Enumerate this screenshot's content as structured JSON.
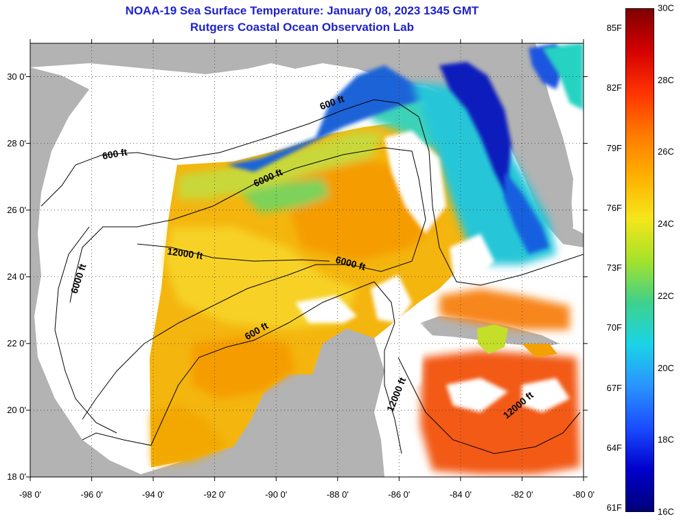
{
  "title": {
    "line1": "NOAA-19 Sea Surface Temperature:  January 08, 2023 1345 GMT",
    "line2": "Rutgers Coastal Ocean Observation Lab"
  },
  "map": {
    "lon_range": [
      -98,
      -80
    ],
    "lat_range": [
      18,
      31
    ],
    "lat_ticks": [
      {
        "value": 18,
        "label": "18 0'"
      },
      {
        "value": 20,
        "label": "20 0'"
      },
      {
        "value": 22,
        "label": "22 0'"
      },
      {
        "value": 24,
        "label": "24 0'"
      },
      {
        "value": 26,
        "label": "26 0'"
      },
      {
        "value": 28,
        "label": "28 0'"
      },
      {
        "value": 30,
        "label": "30 0'"
      }
    ],
    "lon_ticks": [
      {
        "value": -98,
        "label": "-98 0'"
      },
      {
        "value": -96,
        "label": "-96 0'"
      },
      {
        "value": -94,
        "label": "-94 0'"
      },
      {
        "value": -92,
        "label": "-92 0'"
      },
      {
        "value": -90,
        "label": "-90 0'"
      },
      {
        "value": -88,
        "label": "-88 0'"
      },
      {
        "value": -86,
        "label": "-86 0'"
      },
      {
        "value": -84,
        "label": "-84 0'"
      },
      {
        "value": -82,
        "label": "-82 0'"
      },
      {
        "value": -80,
        "label": "-80 0'"
      }
    ],
    "contour_labels": [
      {
        "text": "600 ft"
      },
      {
        "text": "6000 ft"
      },
      {
        "text": "600 ft"
      },
      {
        "text": "12000 ft"
      },
      {
        "text": "6000 ft"
      },
      {
        "text": "6000 ft"
      },
      {
        "text": "600 ft"
      },
      {
        "text": "12000 ft"
      },
      {
        "text": "12000 ft"
      }
    ],
    "colors": {
      "land": "#b3b3b3",
      "cloud": "#ffffff",
      "ocean_warm": "#f5a400",
      "ocean_mid": "#f7c615",
      "ocean_green": "#8fd34a",
      "ocean_cool": "#1f8fe8",
      "ocean_cold": "#0b1fb5",
      "ocean_hot": "#f0561a"
    }
  },
  "colorbar": {
    "range_c": [
      16,
      30
    ],
    "gradient": [
      "#800000",
      "#d40000",
      "#ff3300",
      "#ff7a00",
      "#ffb000",
      "#f5e61a",
      "#a6e22a",
      "#3fd18a",
      "#1ad4e6",
      "#2a94ff",
      "#1a4dff",
      "#0000cc",
      "#00007a"
    ],
    "celsius_labels": [
      {
        "value": 30,
        "label": "30C"
      },
      {
        "value": 28,
        "label": "28C"
      },
      {
        "value": 26,
        "label": "26C"
      },
      {
        "value": 24,
        "label": "24C"
      },
      {
        "value": 22,
        "label": "22C"
      },
      {
        "value": 20,
        "label": "20C"
      },
      {
        "value": 18,
        "label": "18C"
      },
      {
        "value": 16,
        "label": "16C"
      }
    ],
    "fahrenheit_labels": [
      {
        "value": 85,
        "label": "85F"
      },
      {
        "value": 82,
        "label": "82F"
      },
      {
        "value": 79,
        "label": "79F"
      },
      {
        "value": 76,
        "label": "76F"
      },
      {
        "value": 73,
        "label": "73F"
      },
      {
        "value": 70,
        "label": "70F"
      },
      {
        "value": 67,
        "label": "67F"
      },
      {
        "value": 64,
        "label": "64F"
      },
      {
        "value": 61,
        "label": "61F"
      }
    ]
  }
}
